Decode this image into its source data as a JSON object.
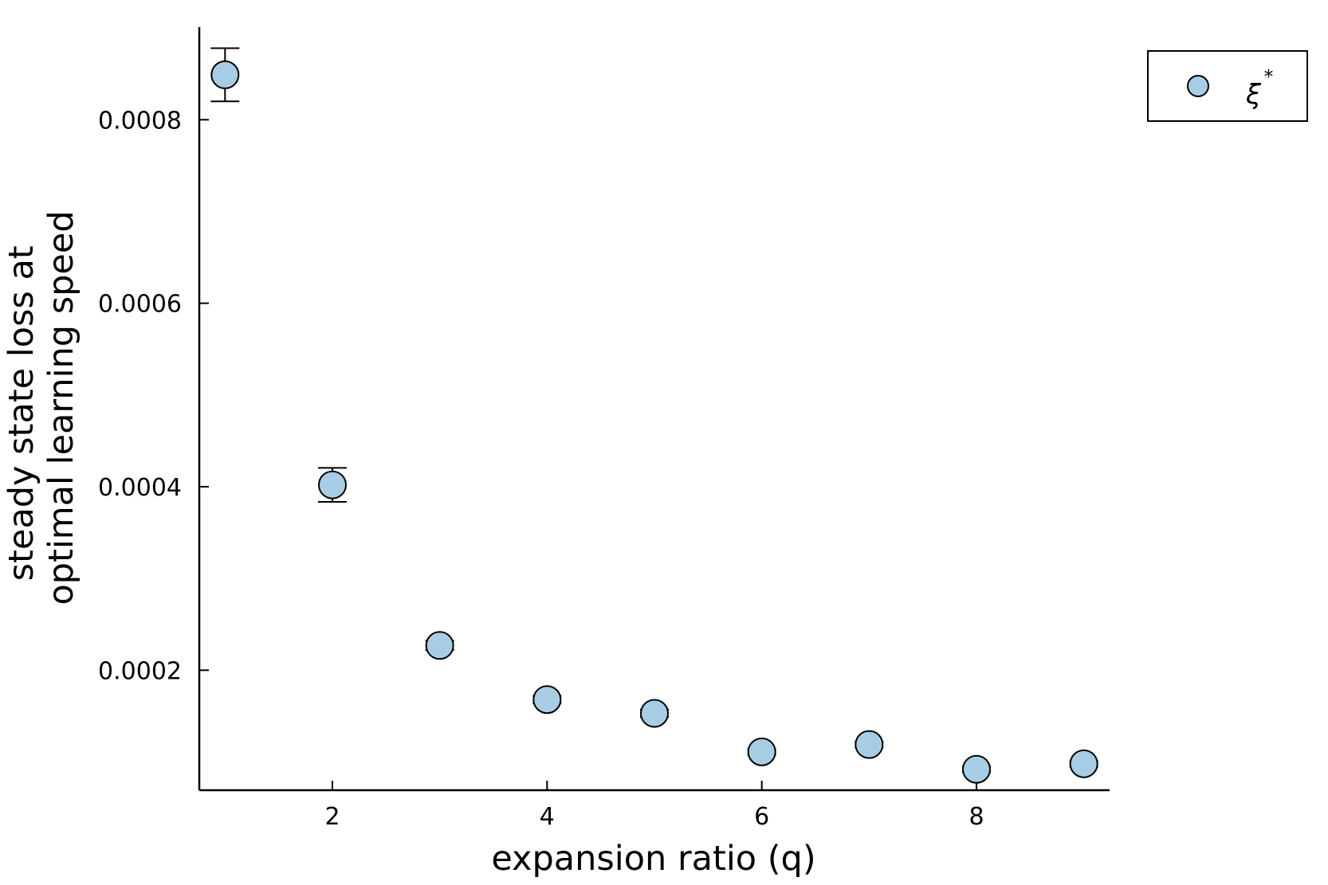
{
  "chart_data": {
    "type": "scatter",
    "title": "",
    "xlabel": "expansion ratio (q)",
    "ylabel_lines": [
      "steady state loss at",
      "optimal learning speed"
    ],
    "xlim": [
      0.76,
      9.24
    ],
    "ylim": [
      6.92e-05,
      0.000901
    ],
    "x_ticks": [
      {
        "value": 2,
        "label": "2"
      },
      {
        "value": 4,
        "label": "4"
      },
      {
        "value": 6,
        "label": "6"
      },
      {
        "value": 8,
        "label": "8"
      }
    ],
    "y_ticks": [
      {
        "value": 0.0002,
        "label": "0.0002"
      },
      {
        "value": 0.0004,
        "label": "0.0004"
      },
      {
        "value": 0.0006,
        "label": "0.0006"
      },
      {
        "value": 0.0008,
        "label": "0.0008"
      }
    ],
    "grid": false,
    "legend_position": "top-right",
    "series": [
      {
        "name": "ξ",
        "name_superscript": "*",
        "color": "#a6cde3",
        "edge_color": "#000000",
        "points": [
          {
            "x": 1,
            "y": 0.000849,
            "err": 2.9e-05
          },
          {
            "x": 2,
            "y": 0.000402,
            "err": 1.85e-05
          },
          {
            "x": 3,
            "y": 0.000227,
            "err": 5e-06
          },
          {
            "x": 4,
            "y": 0.000168,
            "err": 4e-06
          },
          {
            "x": 5,
            "y": 0.000153,
            "err": 4e-06
          },
          {
            "x": 6,
            "y": 0.000111,
            "err": 3e-06
          },
          {
            "x": 7,
            "y": 0.000119,
            "err": 3e-06
          },
          {
            "x": 8,
            "y": 9.2e-05,
            "err": 3e-06
          },
          {
            "x": 9,
            "y": 9.8e-05,
            "err": 3e-06
          }
        ]
      }
    ]
  }
}
